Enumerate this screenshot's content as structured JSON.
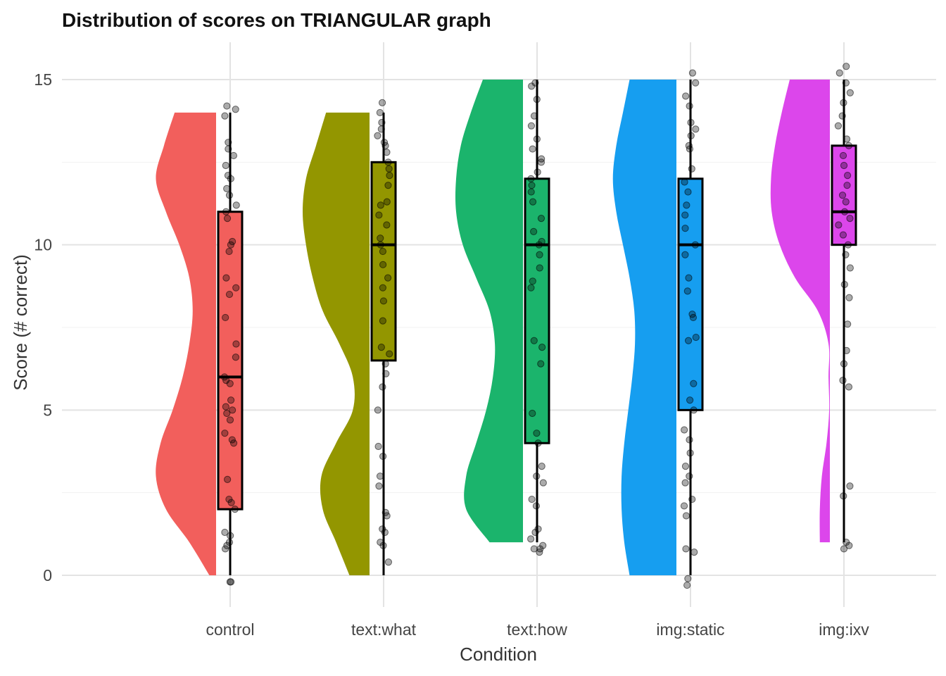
{
  "chart_data": {
    "type": "raincloud",
    "title": "Distribution of scores on TRIANGULAR graph",
    "xlabel": "Condition",
    "ylabel": "Score (# correct)",
    "categories": [
      "control",
      "text:what",
      "text:how",
      "img:static",
      "img:ixv"
    ],
    "yticks": [
      0,
      5,
      10,
      15
    ],
    "ylim": [
      -1.1,
      16.1
    ],
    "grid": "major gridlines on",
    "legend": "none",
    "colors": [
      "#F25F5C",
      "#939600",
      "#1BB46C",
      "#169EF0",
      "#DC46EB"
    ],
    "groups": [
      {
        "category": "control",
        "color": "#F25F5C",
        "box": {
          "q1": 2,
          "median": 6,
          "q3": 11,
          "whisker_low": 0,
          "whisker_high": 14
        },
        "density_range": [
          0,
          14
        ],
        "density": [
          [
            0,
            0.1
          ],
          [
            1,
            0.4
          ],
          [
            2,
            0.75
          ],
          [
            3,
            0.9
          ],
          [
            4,
            0.83
          ],
          [
            5,
            0.65
          ],
          [
            6,
            0.5
          ],
          [
            7,
            0.4
          ],
          [
            8,
            0.35
          ],
          [
            9,
            0.4
          ],
          [
            10,
            0.55
          ],
          [
            11,
            0.75
          ],
          [
            12,
            0.9
          ],
          [
            13,
            0.78
          ],
          [
            14,
            0.62
          ]
        ],
        "points": [
          -0.2,
          -0.2,
          0.8,
          0.9,
          1.0,
          1.2,
          1.3,
          2.0,
          2.2,
          2.3,
          2.9,
          4.0,
          4.1,
          4.3,
          4.7,
          4.9,
          5.0,
          5.1,
          5.3,
          5.8,
          5.9,
          6.0,
          6.6,
          7.0,
          7.8,
          8.5,
          8.7,
          9.0,
          9.8,
          10.0,
          10.1,
          10.8,
          11.0,
          11.2,
          11.5,
          11.7,
          12.0,
          12.1,
          12.4,
          12.7,
          12.9,
          13.1,
          13.9,
          14.1,
          14.2
        ]
      },
      {
        "category": "text:what",
        "color": "#939600",
        "box": {
          "q1": 6.5,
          "median": 10,
          "q3": 12.5,
          "whisker_low": 0,
          "whisker_high": 14
        },
        "density_range": [
          0,
          14
        ],
        "density": [
          [
            0,
            0.3
          ],
          [
            1,
            0.5
          ],
          [
            2,
            0.7
          ],
          [
            3,
            0.72
          ],
          [
            4,
            0.5
          ],
          [
            5,
            0.25
          ],
          [
            6,
            0.25
          ],
          [
            7,
            0.45
          ],
          [
            8,
            0.7
          ],
          [
            9,
            0.85
          ],
          [
            10,
            0.95
          ],
          [
            11,
            1.0
          ],
          [
            12,
            0.95
          ],
          [
            13,
            0.8
          ],
          [
            14,
            0.65
          ]
        ],
        "points": [
          0.4,
          0.9,
          1.0,
          1.3,
          1.4,
          1.8,
          1.9,
          2.7,
          3.0,
          3.6,
          3.9,
          5.0,
          5.7,
          6.1,
          6.4,
          6.7,
          6.9,
          7.7,
          8.3,
          8.7,
          9.0,
          9.4,
          9.8,
          10.0,
          10.2,
          10.6,
          10.9,
          11.2,
          11.3,
          11.8,
          12.1,
          12.3,
          12.5,
          12.8,
          13.0,
          13.1,
          13.3,
          13.5,
          13.7,
          14.0,
          14.3
        ]
      },
      {
        "category": "text:how",
        "color": "#1BB46C",
        "box": {
          "q1": 4,
          "median": 10,
          "q3": 12,
          "whisker_low": 1,
          "whisker_high": 15
        },
        "density_range": [
          1,
          15
        ],
        "density": [
          [
            1,
            0.5
          ],
          [
            2,
            0.85
          ],
          [
            3,
            0.85
          ],
          [
            4,
            0.7
          ],
          [
            5,
            0.55
          ],
          [
            6,
            0.45
          ],
          [
            7,
            0.42
          ],
          [
            8,
            0.5
          ],
          [
            9,
            0.7
          ],
          [
            10,
            0.9
          ],
          [
            11,
            1.0
          ],
          [
            12,
            1.0
          ],
          [
            13,
            0.93
          ],
          [
            14,
            0.78
          ],
          [
            15,
            0.6
          ]
        ],
        "points": [
          0.7,
          0.8,
          0.8,
          0.9,
          1.1,
          1.3,
          1.4,
          2.1,
          2.3,
          2.8,
          3.0,
          3.3,
          4.0,
          4.3,
          4.9,
          6.4,
          6.9,
          7.1,
          8.7,
          8.9,
          9.3,
          9.7,
          10.0,
          10.1,
          10.4,
          10.8,
          11.3,
          11.6,
          11.8,
          12.0,
          12.2,
          12.5,
          12.6,
          12.9,
          13.2,
          13.6,
          13.9,
          14.4,
          14.8,
          14.9
        ]
      },
      {
        "category": "img:static",
        "color": "#169EF0",
        "box": {
          "q1": 5,
          "median": 10,
          "q3": 12,
          "whisker_low": 0,
          "whisker_high": 15
        },
        "density_range": [
          0,
          15
        ],
        "density": [
          [
            0,
            0.7
          ],
          [
            1,
            0.78
          ],
          [
            2,
            0.82
          ],
          [
            3,
            0.82
          ],
          [
            4,
            0.78
          ],
          [
            5,
            0.72
          ],
          [
            6,
            0.66
          ],
          [
            7,
            0.62
          ],
          [
            8,
            0.63
          ],
          [
            9,
            0.7
          ],
          [
            10,
            0.8
          ],
          [
            11,
            0.9
          ],
          [
            12,
            0.95
          ],
          [
            13,
            0.9
          ],
          [
            14,
            0.8
          ],
          [
            15,
            0.7
          ]
        ],
        "points": [
          -0.3,
          -0.1,
          0.7,
          0.8,
          1.8,
          2.1,
          2.3,
          2.8,
          3.0,
          3.3,
          3.7,
          4.1,
          4.4,
          5.0,
          5.3,
          5.8,
          7.1,
          7.2,
          7.8,
          7.9,
          8.6,
          9.0,
          9.7,
          10.0,
          10.5,
          10.9,
          11.2,
          11.6,
          11.9,
          12.3,
          12.9,
          13.0,
          13.3,
          13.5,
          13.7,
          14.2,
          14.5,
          14.9,
          15.2
        ]
      },
      {
        "category": "img:ixv",
        "color": "#DC46EB",
        "box": {
          "q1": 10,
          "median": 11,
          "q3": 13,
          "whisker_low": 1,
          "whisker_high": 15
        },
        "density_range": [
          1,
          15
        ],
        "density": [
          [
            1,
            0.15
          ],
          [
            2,
            0.15
          ],
          [
            3,
            0.12
          ],
          [
            4,
            0.05
          ],
          [
            5,
            0.01
          ],
          [
            6,
            0.02
          ],
          [
            7,
            0.02
          ],
          [
            8,
            0.18
          ],
          [
            9,
            0.52
          ],
          [
            10,
            0.75
          ],
          [
            11,
            0.87
          ],
          [
            12,
            0.88
          ],
          [
            13,
            0.82
          ],
          [
            14,
            0.72
          ],
          [
            15,
            0.6
          ]
        ],
        "points": [
          0.8,
          0.9,
          1.0,
          2.4,
          2.7,
          5.7,
          5.9,
          6.4,
          6.8,
          7.6,
          8.4,
          8.8,
          9.3,
          9.7,
          10.0,
          10.3,
          10.6,
          10.8,
          11.0,
          11.3,
          11.5,
          11.8,
          12.1,
          12.4,
          12.7,
          13.0,
          13.2,
          13.6,
          13.9,
          14.3,
          14.6,
          14.9,
          15.2,
          15.4
        ]
      }
    ]
  }
}
